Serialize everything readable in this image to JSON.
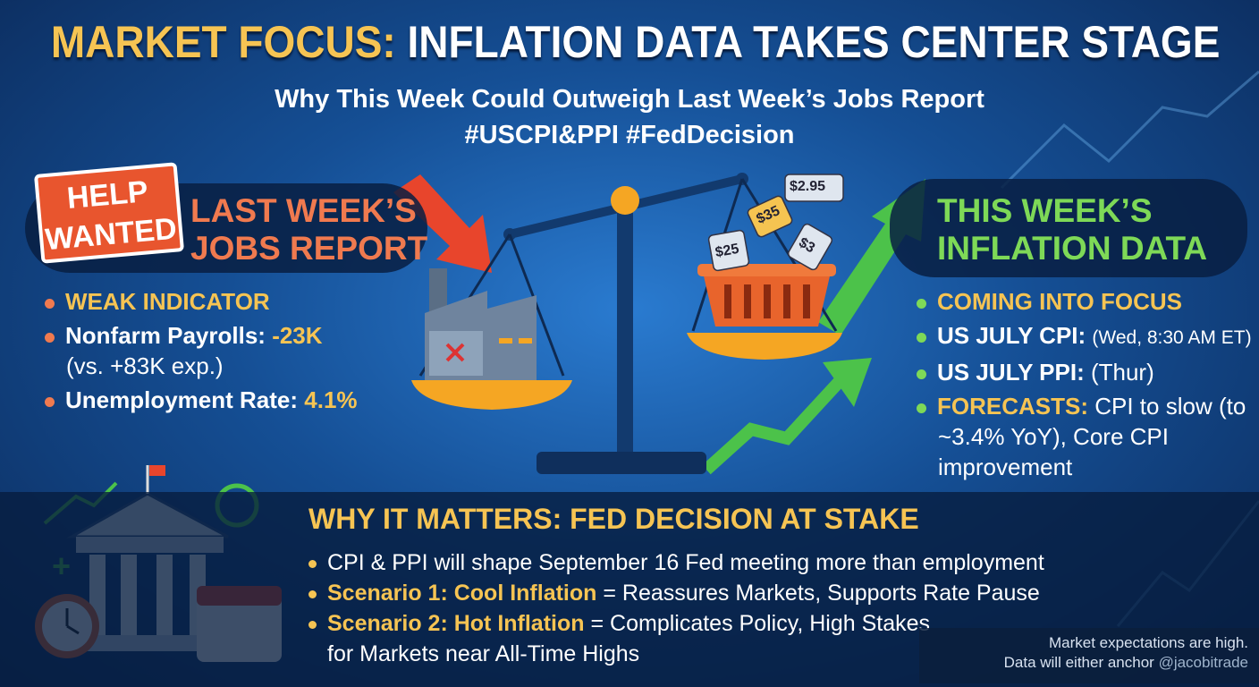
{
  "header": {
    "title_highlight": "MARKET FOCUS:",
    "title_rest": "INFLATION DATA TAKES CENTER STAGE",
    "subtitle": "Why This Week Could Outweigh Last Week’s Jobs Report",
    "hashtags": "#USCPI&PPI #FedDecision"
  },
  "left": {
    "sign": [
      "HELP",
      "WANTED"
    ],
    "heading": [
      "LAST WEEK’S",
      "JOBS REPORT"
    ],
    "bullets": [
      {
        "label": "WEAK INDICATOR"
      },
      {
        "label": "Nonfarm Payrolls:",
        "value": "-23K",
        "note": "(vs. +83K exp.)"
      },
      {
        "label": "Unemployment Rate:",
        "value": "4.1%"
      }
    ]
  },
  "scale": {
    "price_tags": [
      "$2.95",
      "$35",
      "$25",
      "$3"
    ]
  },
  "right": {
    "heading": [
      "THIS WEEK’S",
      "INFLATION DATA"
    ],
    "bullets": [
      {
        "label": "COMING INTO FOCUS"
      },
      {
        "label": "US JULY CPI:",
        "value": "(Wed, 8:30 AM ET)"
      },
      {
        "label": "US JULY PPI:",
        "value": "(Thur)"
      },
      {
        "label": "FORECASTS:",
        "value": "CPI to slow (to ~3.4% YoY), Core CPI improvement"
      }
    ]
  },
  "bottom": {
    "heading": "WHY IT MATTERS: FED DECISION AT STAKE",
    "bullets": [
      {
        "text": "CPI & PPI will shape September 16 Fed meeting more than employment"
      },
      {
        "label": "Scenario 1: Cool Inflation",
        "text": "= Reassures Markets, Supports Rate Pause"
      },
      {
        "label": "Scenario 2: Hot Inflation",
        "text": "= Complicates Policy, High Stakes for Markets near All-Time Highs"
      }
    ]
  },
  "footer": {
    "lines": [
      "Market expectations are high.",
      "Data will either anchor"
    ],
    "watermark": "@jacobitrade"
  }
}
